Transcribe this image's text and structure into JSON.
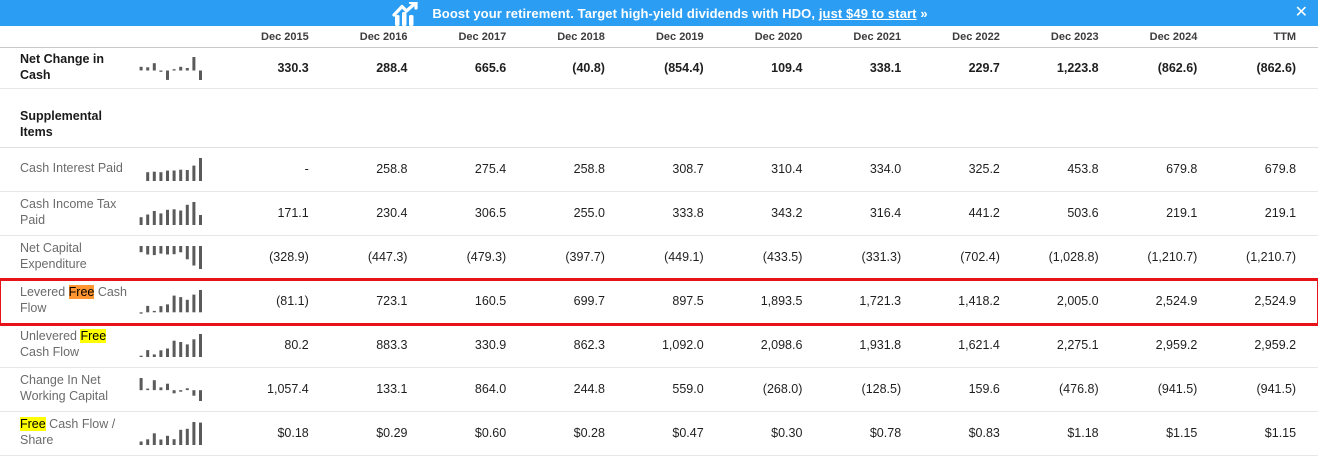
{
  "banner": {
    "text_before": "Boost your retirement. Target high-yield dividends with HDO, ",
    "link_text": "just $49 to start",
    "text_after": " »",
    "close_glyph": "✕",
    "bg_color": "#2b9ef4"
  },
  "table": {
    "columns": [
      "Dec 2015",
      "Dec 2016",
      "Dec 2017",
      "Dec 2018",
      "Dec 2019",
      "Dec 2020",
      "Dec 2021",
      "Dec 2022",
      "Dec 2023",
      "Dec 2024",
      "TTM"
    ],
    "highlight_colors": {
      "current_match": "#ff9632",
      "other_match": "#ffff00"
    },
    "annotation_box_color": "#e81219",
    "rows": [
      {
        "name": "net-change-in-cash",
        "label": [
          {
            "t": "Net Change in Cash"
          }
        ],
        "bold": true,
        "values": [
          "330.3",
          "288.4",
          "665.6",
          "(40.8)",
          "(854.4)",
          "109.4",
          "338.1",
          "229.7",
          "1,223.8",
          "(862.6)",
          "(862.6)"
        ],
        "spark": [
          330.3,
          288.4,
          665.6,
          -40.8,
          -854.4,
          109.4,
          338.1,
          229.7,
          1223.8,
          -862.6
        ]
      },
      {
        "type": "section",
        "name": "supplemental-items",
        "label": "Supplemental Items"
      },
      {
        "name": "cash-interest-paid",
        "label": [
          {
            "t": "Cash Interest Paid"
          }
        ],
        "values": [
          "-",
          "258.8",
          "275.4",
          "258.8",
          "308.7",
          "310.4",
          "334.0",
          "325.2",
          "453.8",
          "679.8",
          "679.8"
        ],
        "spark": [
          null,
          258.8,
          275.4,
          258.8,
          308.7,
          310.4,
          334.0,
          325.2,
          453.8,
          679.8
        ]
      },
      {
        "name": "cash-income-tax-paid",
        "label": [
          {
            "t": "Cash Income Tax Paid"
          }
        ],
        "values": [
          "171.1",
          "230.4",
          "306.5",
          "255.0",
          "333.8",
          "343.2",
          "316.4",
          "441.2",
          "503.6",
          "219.1",
          "219.1"
        ],
        "spark": [
          171.1,
          230.4,
          306.5,
          255.0,
          333.8,
          343.2,
          316.4,
          441.2,
          503.6,
          219.1
        ]
      },
      {
        "name": "net-capital-expenditure",
        "label": [
          {
            "t": "Net Capital Expenditure"
          }
        ],
        "values": [
          "(328.9)",
          "(447.3)",
          "(479.3)",
          "(397.7)",
          "(449.1)",
          "(433.5)",
          "(331.3)",
          "(702.4)",
          "(1,028.8)",
          "(1,210.7)",
          "(1,210.7)"
        ],
        "spark": [
          -328.9,
          -447.3,
          -479.3,
          -397.7,
          -449.1,
          -433.5,
          -331.3,
          -702.4,
          -1028.8,
          -1210.7
        ]
      },
      {
        "name": "levered-free-cash-flow",
        "label": [
          {
            "t": "Levered "
          },
          {
            "t": "Free",
            "hl": "current"
          },
          {
            "t": " Cash Flow"
          }
        ],
        "highlight_box": true,
        "values": [
          "(81.1)",
          "723.1",
          "160.5",
          "699.7",
          "897.5",
          "1,893.5",
          "1,721.3",
          "1,418.2",
          "2,005.0",
          "2,524.9",
          "2,524.9"
        ],
        "spark": [
          -81.1,
          723.1,
          160.5,
          699.7,
          897.5,
          1893.5,
          1721.3,
          1418.2,
          2005.0,
          2524.9
        ]
      },
      {
        "name": "unlevered-free-cash-flow",
        "label": [
          {
            "t": "Unlevered "
          },
          {
            "t": "Free",
            "hl": "match"
          },
          {
            "t": " Cash Flow"
          }
        ],
        "values": [
          "80.2",
          "883.3",
          "330.9",
          "862.3",
          "1,092.0",
          "2,098.6",
          "1,931.8",
          "1,621.4",
          "2,275.1",
          "2,959.2",
          "2,959.2"
        ],
        "spark": [
          80.2,
          883.3,
          330.9,
          862.3,
          1092.0,
          2098.6,
          1931.8,
          1621.4,
          2275.1,
          2959.2
        ]
      },
      {
        "name": "change-in-net-working-capital",
        "label": [
          {
            "t": "Change In Net Working Capital"
          }
        ],
        "values": [
          "1,057.4",
          "133.1",
          "864.0",
          "244.8",
          "559.0",
          "(268.0)",
          "(128.5)",
          "159.6",
          "(476.8)",
          "(941.5)",
          "(941.5)"
        ],
        "spark": [
          1057.4,
          133.1,
          864.0,
          244.8,
          559.0,
          -268.0,
          -128.5,
          159.6,
          -476.8,
          -941.5
        ]
      },
      {
        "name": "free-cash-flow-per-share",
        "label": [
          {
            "t": "Free",
            "hl": "match"
          },
          {
            "t": " Cash Flow / Share"
          }
        ],
        "values": [
          "$0.18",
          "$0.29",
          "$0.60",
          "$0.28",
          "$0.47",
          "$0.30",
          "$0.78",
          "$0.83",
          "$1.18",
          "$1.15",
          "$1.15"
        ],
        "spark": [
          0.18,
          0.29,
          0.6,
          0.28,
          0.47,
          0.3,
          0.78,
          0.83,
          1.18,
          1.15
        ]
      }
    ]
  }
}
